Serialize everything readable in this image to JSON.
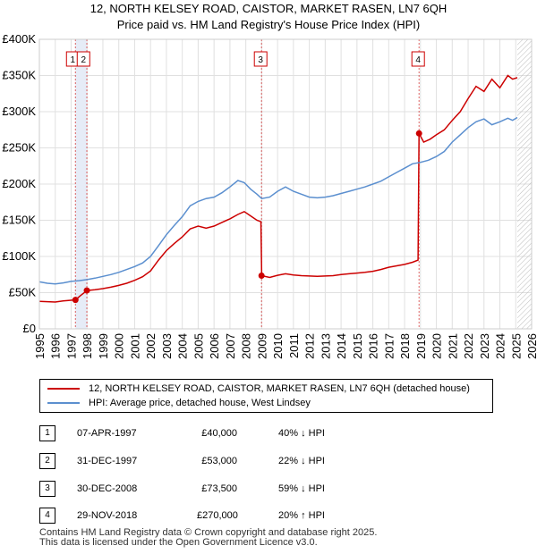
{
  "title_line1": "12, NORTH KELSEY ROAD, CAISTOR, MARKET RASEN, LN7 6QH",
  "title_line2": "Price paid vs. HM Land Registry's House Price Index (HPI)",
  "chart_data": {
    "type": "line",
    "title": "12, NORTH KELSEY ROAD, CAISTOR, MARKET RASEN, LN7 6QH — Price paid vs. HM Land Registry's House Price Index (HPI)",
    "xlim": [
      1995,
      2026
    ],
    "ylim": [
      0,
      400000
    ],
    "x_ticks": [
      1995,
      1996,
      1997,
      1998,
      1999,
      2000,
      2001,
      2002,
      2003,
      2004,
      2005,
      2006,
      2007,
      2008,
      2009,
      2010,
      2011,
      2012,
      2013,
      2014,
      2015,
      2016,
      2017,
      2018,
      2019,
      2020,
      2021,
      2022,
      2023,
      2024,
      2025,
      2026
    ],
    "y_ticks": [
      {
        "value": 0,
        "label": "£0"
      },
      {
        "value": 50000,
        "label": "£50K"
      },
      {
        "value": 100000,
        "label": "£100K"
      },
      {
        "value": 150000,
        "label": "£150K"
      },
      {
        "value": 200000,
        "label": "£200K"
      },
      {
        "value": 250000,
        "label": "£250K"
      },
      {
        "value": 300000,
        "label": "£300K"
      },
      {
        "value": 350000,
        "label": "£350K"
      },
      {
        "value": 400000,
        "label": "£400K"
      }
    ],
    "grid": true,
    "future_hatch_from": 2025.1,
    "series": [
      {
        "name": "12, NORTH KELSEY ROAD, CAISTOR, MARKET RASEN, LN7 6QH (detached house)",
        "color": "#cc0000",
        "points": [
          [
            1995.0,
            38000
          ],
          [
            1995.5,
            37500
          ],
          [
            1996.0,
            37000
          ],
          [
            1996.5,
            38500
          ],
          [
            1997.0,
            39500
          ],
          [
            1997.27,
            40000
          ],
          [
            1997.6,
            46000
          ],
          [
            1998.0,
            53000
          ],
          [
            1998.5,
            54000
          ],
          [
            1999.0,
            55500
          ],
          [
            1999.5,
            57500
          ],
          [
            2000.0,
            60000
          ],
          [
            2000.5,
            63000
          ],
          [
            2001.0,
            67000
          ],
          [
            2001.5,
            72000
          ],
          [
            2002.0,
            80000
          ],
          [
            2002.5,
            95000
          ],
          [
            2003.0,
            108000
          ],
          [
            2003.5,
            118000
          ],
          [
            2004.0,
            127000
          ],
          [
            2004.5,
            138000
          ],
          [
            2005.0,
            142000
          ],
          [
            2005.5,
            139000
          ],
          [
            2006.0,
            142000
          ],
          [
            2006.5,
            147000
          ],
          [
            2007.0,
            152000
          ],
          [
            2007.5,
            158000
          ],
          [
            2007.9,
            162000
          ],
          [
            2008.3,
            156000
          ],
          [
            2008.7,
            150000
          ],
          [
            2008.95,
            148000
          ],
          [
            2009.0,
            73500
          ],
          [
            2009.5,
            71000
          ],
          [
            2010.0,
            74000
          ],
          [
            2010.5,
            76000
          ],
          [
            2011.0,
            74500
          ],
          [
            2011.5,
            73500
          ],
          [
            2012.0,
            73000
          ],
          [
            2012.5,
            72500
          ],
          [
            2013.0,
            73000
          ],
          [
            2013.5,
            73500
          ],
          [
            2014.0,
            75000
          ],
          [
            2014.5,
            76000
          ],
          [
            2015.0,
            77000
          ],
          [
            2015.5,
            78000
          ],
          [
            2016.0,
            79500
          ],
          [
            2016.5,
            82000
          ],
          [
            2017.0,
            85000
          ],
          [
            2017.5,
            87000
          ],
          [
            2018.0,
            89000
          ],
          [
            2018.5,
            92000
          ],
          [
            2018.85,
            95000
          ],
          [
            2018.91,
            270000
          ],
          [
            2019.2,
            258000
          ],
          [
            2019.6,
            262000
          ],
          [
            2020.0,
            268000
          ],
          [
            2020.5,
            275000
          ],
          [
            2021.0,
            288000
          ],
          [
            2021.5,
            300000
          ],
          [
            2022.0,
            318000
          ],
          [
            2022.5,
            335000
          ],
          [
            2023.0,
            328000
          ],
          [
            2023.5,
            345000
          ],
          [
            2024.0,
            333000
          ],
          [
            2024.5,
            350000
          ],
          [
            2024.8,
            345000
          ],
          [
            2025.1,
            347000
          ]
        ]
      },
      {
        "name": "HPI: Average price, detached house, West Lindsey",
        "color": "#5b8fcf",
        "points": [
          [
            1995.0,
            65000
          ],
          [
            1995.5,
            63000
          ],
          [
            1996.0,
            62000
          ],
          [
            1996.5,
            63500
          ],
          [
            1997.0,
            65500
          ],
          [
            1997.5,
            66500
          ],
          [
            1998.0,
            68000
          ],
          [
            1998.5,
            70000
          ],
          [
            1999.0,
            72500
          ],
          [
            1999.5,
            75000
          ],
          [
            2000.0,
            78000
          ],
          [
            2000.5,
            82000
          ],
          [
            2001.0,
            86000
          ],
          [
            2001.5,
            91000
          ],
          [
            2002.0,
            100000
          ],
          [
            2002.5,
            115000
          ],
          [
            2003.0,
            130000
          ],
          [
            2003.5,
            143000
          ],
          [
            2004.0,
            155000
          ],
          [
            2004.5,
            170000
          ],
          [
            2005.0,
            176000
          ],
          [
            2005.5,
            180000
          ],
          [
            2006.0,
            182000
          ],
          [
            2006.5,
            188000
          ],
          [
            2007.0,
            196000
          ],
          [
            2007.5,
            205000
          ],
          [
            2007.9,
            202000
          ],
          [
            2008.3,
            193000
          ],
          [
            2008.7,
            186000
          ],
          [
            2009.0,
            180000
          ],
          [
            2009.5,
            182000
          ],
          [
            2010.0,
            190000
          ],
          [
            2010.5,
            196000
          ],
          [
            2011.0,
            190000
          ],
          [
            2011.5,
            186000
          ],
          [
            2012.0,
            182000
          ],
          [
            2012.5,
            181000
          ],
          [
            2013.0,
            182000
          ],
          [
            2013.5,
            184000
          ],
          [
            2014.0,
            187000
          ],
          [
            2014.5,
            190000
          ],
          [
            2015.0,
            193000
          ],
          [
            2015.5,
            196000
          ],
          [
            2016.0,
            200000
          ],
          [
            2016.5,
            204000
          ],
          [
            2017.0,
            210000
          ],
          [
            2017.5,
            216000
          ],
          [
            2018.0,
            222000
          ],
          [
            2018.5,
            228000
          ],
          [
            2019.0,
            230000
          ],
          [
            2019.5,
            233000
          ],
          [
            2020.0,
            238000
          ],
          [
            2020.5,
            245000
          ],
          [
            2021.0,
            258000
          ],
          [
            2021.5,
            268000
          ],
          [
            2022.0,
            278000
          ],
          [
            2022.5,
            286000
          ],
          [
            2023.0,
            290000
          ],
          [
            2023.5,
            282000
          ],
          [
            2024.0,
            286000
          ],
          [
            2024.5,
            291000
          ],
          [
            2024.8,
            288000
          ],
          [
            2025.1,
            292000
          ]
        ]
      }
    ],
    "sales": [
      {
        "label": "1",
        "x": 1997.27,
        "price": 40000
      },
      {
        "label": "2",
        "x": 1997.99,
        "price": 53000
      },
      {
        "label": "3",
        "x": 2008.99,
        "price": 73500
      },
      {
        "label": "4",
        "x": 2018.91,
        "price": 270000
      }
    ]
  },
  "legend": {
    "red_label": "12, NORTH KELSEY ROAD, CAISTOR, MARKET RASEN, LN7 6QH (detached house)",
    "blue_label": "HPI: Average price, detached house, West Lindsey"
  },
  "transactions": [
    {
      "num": "1",
      "date": "07-APR-1997",
      "price": "£40,000",
      "hpi": "40% ↓ HPI"
    },
    {
      "num": "2",
      "date": "31-DEC-1997",
      "price": "£53,000",
      "hpi": "22% ↓ HPI"
    },
    {
      "num": "3",
      "date": "30-DEC-2008",
      "price": "£73,500",
      "hpi": "59% ↓ HPI"
    },
    {
      "num": "4",
      "date": "29-NOV-2018",
      "price": "£270,000",
      "hpi": "20% ↑ HPI"
    }
  ],
  "footer_line1": "Contains HM Land Registry data © Crown copyright and database right 2025.",
  "footer_line2": "This data is licensed under the Open Government Licence v3.0."
}
